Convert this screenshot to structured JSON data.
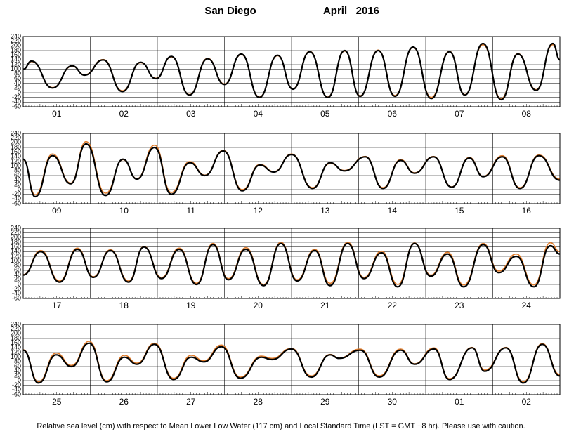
{
  "header": {
    "title": "San Diego",
    "date": "April   2016"
  },
  "footnote": "Relative sea level (cm) with respect to Mean Lower Low Water (117 cm) and Local Standard Time (LST = GMT −8 hr). Please use with caution.",
  "chart_data": [
    {
      "type": "line",
      "categories": [
        "01",
        "02",
        "03",
        "04",
        "05",
        "06",
        "07",
        "08"
      ],
      "xlim": [
        0,
        192
      ],
      "ylim": [
        -60,
        240
      ],
      "yticks": [
        -60,
        -40,
        -20,
        0,
        20,
        40,
        60,
        80,
        100,
        120,
        140,
        160,
        180,
        200,
        220,
        240
      ],
      "grid": true,
      "x": [
        0,
        3,
        10.5,
        17.5,
        22,
        28.6,
        35.5,
        42,
        47.5,
        53,
        59.5,
        66,
        72,
        78,
        84.5,
        91,
        96.5,
        102.5,
        109,
        115,
        120.5,
        127,
        133,
        139.5,
        146,
        152.5,
        158,
        164.5,
        171,
        177,
        183.5,
        189.5,
        192
      ],
      "series": [
        {
          "color": "#e07b2a",
          "values": [
            100,
            133,
            22,
            113,
            77,
            142,
            8,
            128,
            62,
            153,
            -8,
            147,
            37,
            163,
            -18,
            158,
            17,
            177,
            -18,
            178,
            -13,
            182,
            -12,
            193,
            -20,
            177,
            -8,
            205,
            -25,
            167,
            13,
            205,
            142
          ]
        },
        {
          "color": "#000000",
          "values": [
            100,
            135,
            20,
            115,
            75,
            140,
            5,
            130,
            60,
            155,
            -10,
            145,
            35,
            165,
            -20,
            160,
            15,
            175,
            -20,
            180,
            -15,
            180,
            -15,
            195,
            -25,
            175,
            -10,
            210,
            -30,
            165,
            10,
            210,
            140
          ]
        }
      ]
    },
    {
      "type": "line",
      "categories": [
        "09",
        "10",
        "11",
        "12",
        "13",
        "14",
        "15",
        "16"
      ],
      "xlim": [
        0,
        192
      ],
      "ylim": [
        -60,
        240
      ],
      "yticks": [
        -60,
        -40,
        -20,
        0,
        20,
        40,
        60,
        80,
        100,
        120,
        140,
        160,
        180,
        200,
        220,
        240
      ],
      "grid": true,
      "x": [
        0,
        4.3,
        10.5,
        17,
        22.5,
        29.5,
        35.7,
        40.7,
        47,
        53,
        59.6,
        65,
        71.6,
        78.4,
        84.7,
        89.7,
        96,
        103.5,
        109.8,
        114.9,
        122.4,
        128.7,
        135,
        140,
        146.8,
        153.3,
        159.6,
        164.6,
        171.4,
        177.7,
        184.5,
        192
      ],
      "series": [
        {
          "color": "#e07b2a",
          "values": [
            128,
            -22,
            152,
            28,
            205,
            -15,
            128,
            47,
            190,
            -12,
            120,
            62,
            168,
            0,
            108,
            77,
            152,
            8,
            112,
            82,
            142,
            8,
            128,
            72,
            142,
            12,
            138,
            57,
            145,
            8,
            148,
            45
          ]
        },
        {
          "color": "#000000",
          "values": [
            130,
            -30,
            145,
            25,
            195,
            -25,
            130,
            45,
            180,
            -20,
            115,
            60,
            165,
            -5,
            105,
            75,
            150,
            5,
            115,
            80,
            140,
            5,
            125,
            70,
            140,
            10,
            135,
            55,
            140,
            5,
            145,
            40
          ]
        }
      ]
    },
    {
      "type": "line",
      "categories": [
        "17",
        "18",
        "19",
        "20",
        "21",
        "22",
        "23",
        "24"
      ],
      "xlim": [
        0,
        192
      ],
      "ylim": [
        -60,
        240
      ],
      "yticks": [
        -60,
        -40,
        -20,
        0,
        20,
        40,
        60,
        80,
        100,
        120,
        140,
        160,
        180,
        200,
        220,
        240
      ],
      "grid": true,
      "x": [
        0,
        6.3,
        13,
        19.4,
        25.1,
        31.2,
        37.7,
        43.2,
        49.5,
        55.8,
        62,
        67.9,
        73.4,
        79.7,
        86,
        92.2,
        98,
        104.3,
        109.8,
        116.1,
        121.9,
        128.2,
        134,
        140,
        145.8,
        151.8,
        157.6,
        164.6,
        170.1,
        176.4,
        182.7,
        188.6,
        192
      ],
      "series": [
        {
          "color": "#e07b2a",
          "values": [
            42,
            145,
            15,
            155,
            33,
            148,
            15,
            162,
            30,
            155,
            5,
            175,
            25,
            157,
            0,
            180,
            20,
            150,
            5,
            180,
            30,
            142,
            0,
            177,
            40,
            137,
            -2,
            175,
            57,
            130,
            -2,
            178,
            140
          ]
        },
        {
          "color": "#000000",
          "values": [
            40,
            140,
            10,
            150,
            30,
            145,
            10,
            160,
            25,
            150,
            0,
            170,
            20,
            150,
            -5,
            175,
            15,
            145,
            -5,
            175,
            25,
            135,
            -10,
            175,
            35,
            130,
            -10,
            170,
            50,
            120,
            -10,
            165,
            130
          ]
        }
      ]
    },
    {
      "type": "line",
      "categories": [
        "25",
        "26",
        "27",
        "28",
        "29",
        "30",
        "01",
        "02"
      ],
      "xlim": [
        0,
        192
      ],
      "ylim": [
        -60,
        240
      ],
      "yticks": [
        -60,
        -40,
        -20,
        0,
        20,
        40,
        60,
        80,
        100,
        120,
        140,
        160,
        180,
        200,
        220,
        240
      ],
      "grid": true,
      "x": [
        0,
        5.5,
        11.8,
        17.3,
        23.6,
        29.9,
        36.2,
        40.7,
        47,
        53.8,
        60.1,
        64.6,
        70.9,
        77.7,
        85.2,
        89,
        96,
        103,
        109.8,
        113,
        120.6,
        127.4,
        135,
        140,
        147,
        152.5,
        160.6,
        165.1,
        172.7,
        178.9,
        185.7,
        192
      ],
      "series": [
        {
          "color": "#e07b2a",
          "values": [
            132,
            -5,
            118,
            65,
            168,
            0,
            108,
            75,
            160,
            10,
            108,
            85,
            152,
            15,
            105,
            95,
            138,
            20,
            112,
            97,
            135,
            20,
            135,
            72,
            140,
            8,
            142,
            45,
            142,
            -5,
            158,
            25
          ]
        },
        {
          "color": "#000000",
          "values": [
            130,
            -10,
            110,
            60,
            160,
            -5,
            100,
            70,
            155,
            5,
            100,
            80,
            145,
            10,
            100,
            90,
            135,
            15,
            110,
            95,
            130,
            15,
            130,
            70,
            135,
            5,
            140,
            40,
            140,
            -10,
            155,
            20
          ]
        }
      ]
    }
  ]
}
